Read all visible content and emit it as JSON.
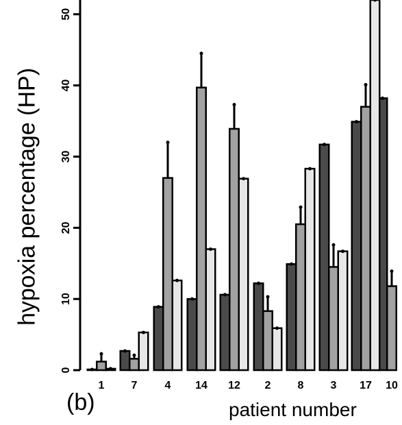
{
  "panel_label": "(b)",
  "chart_data": {
    "type": "bar",
    "categories": [
      "1",
      "7",
      "4",
      "14",
      "12",
      "2",
      "8",
      "3",
      "17",
      "10"
    ],
    "series": [
      {
        "values": [
          0.1,
          2.7,
          8.9,
          10.0,
          10.6,
          12.2,
          14.9,
          31.7,
          34.9,
          38.2
        ]
      },
      {
        "values": [
          1.2,
          1.6,
          27.0,
          39.7,
          33.9,
          8.3,
          20.5,
          14.5,
          37.0,
          11.8
        ]
      },
      {
        "values": [
          0.2,
          5.3,
          12.6,
          17.0,
          26.9,
          5.9,
          28.3,
          16.7,
          52.0,
          null
        ]
      }
    ],
    "error_upper": [
      [
        null,
        null,
        null,
        null,
        null,
        null,
        null,
        null,
        null,
        null
      ],
      [
        2.3,
        2.1,
        32.0,
        44.5,
        37.3,
        10.3,
        22.9,
        17.6,
        40.1,
        13.9
      ],
      [
        null,
        null,
        null,
        null,
        null,
        null,
        null,
        null,
        null,
        null
      ]
    ],
    "ylabel": "hypoxia percentage (HP)",
    "xlabel": "patient number",
    "yticks": [
      0,
      10,
      20,
      30,
      40,
      50
    ],
    "ylim": [
      0,
      52
    ],
    "colors": [
      "#4a4a4a",
      "#a2a2a2",
      "#e6e6e6"
    ]
  }
}
